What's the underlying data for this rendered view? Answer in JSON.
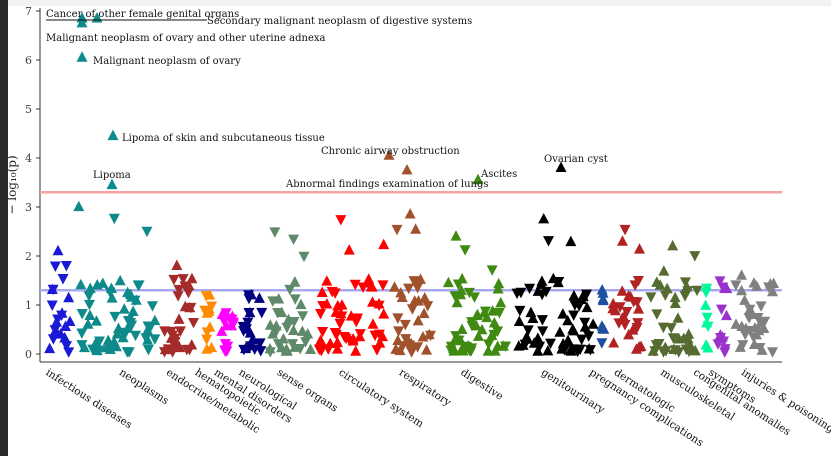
{
  "chart_data": {
    "type": "scatter",
    "title": "",
    "xlabel": "",
    "ylabel": "− log₁₀(p)",
    "ylim": [
      0,
      7
    ],
    "yticks": [
      0,
      1,
      2,
      3,
      4,
      5,
      6,
      7
    ],
    "grid": false,
    "legend": "none",
    "thresholds": [
      {
        "name": "bonferroni",
        "y": 3.3,
        "color": "#f5a3a3"
      },
      {
        "name": "nominal",
        "y": 1.3,
        "color": "#a8a8f0"
      }
    ],
    "categories": [
      {
        "label": "infectious diseases",
        "color": "#1a1ad6",
        "n": 22,
        "max": 2.1
      },
      {
        "label": "neoplasms",
        "color": "#0e8a8a",
        "n": 62,
        "max": 3.0
      },
      {
        "label": "endocrine/metabolic",
        "color": "#a52a2a",
        "n": 30,
        "max": 1.8
      },
      {
        "label": "hematopoietic",
        "color": "#ff8c00",
        "n": 12,
        "max": 1.2
      },
      {
        "label": "mental disorders",
        "color": "#ff00ff",
        "n": 16,
        "max": 0.8
      },
      {
        "label": "neurological",
        "color": "#000080",
        "n": 20,
        "max": 1.2
      },
      {
        "label": "sense organs",
        "color": "#5f8a6a",
        "n": 36,
        "max": 2.5
      },
      {
        "label": "circulatory system",
        "color": "#ff0000",
        "n": 54,
        "max": 2.75
      },
      {
        "label": "respiratory",
        "color": "#a0522d",
        "n": 34,
        "max": 2.85
      },
      {
        "label": "digestive",
        "color": "#3f8a10",
        "n": 56,
        "max": 2.4
      },
      {
        "label": "genitourinary",
        "color": "#000000",
        "n": 62,
        "max": 2.75
      },
      {
        "label": "pregnancy complications",
        "color": "#1f4fa0",
        "n": 8,
        "max": 1.3
      },
      {
        "label": "dermatologic",
        "color": "#b22222",
        "n": 28,
        "max": 2.55
      },
      {
        "label": "musculoskeletal",
        "color": "#556b2f",
        "n": 40,
        "max": 2.2
      },
      {
        "label": "congenital anomalies",
        "color": "#00fa9a",
        "n": 8,
        "max": 1.35
      },
      {
        "label": "symptoms",
        "color": "#9932cc",
        "n": 14,
        "max": 1.5
      },
      {
        "label": "injuries & poisonings",
        "color": "#808080",
        "n": 34,
        "max": 1.6
      }
    ],
    "highlighted": [
      {
        "label": "Cancer of other female genital organs",
        "category": "neoplasms",
        "y": 6.85,
        "direction": "up"
      },
      {
        "label": "Secondary malignant neoplasm of digestive systems",
        "category": "neoplasms",
        "y": 6.85,
        "direction": "up"
      },
      {
        "label": "Malignant neoplasm of ovary and other uterine adnexa",
        "category": "neoplasms",
        "y": 6.75,
        "direction": "up"
      },
      {
        "label": "Malignant neoplasm of ovary",
        "category": "neoplasms",
        "y": 6.05,
        "direction": "up"
      },
      {
        "label": "Lipoma of skin and subcutaneous tissue",
        "category": "neoplasms",
        "y": 4.45,
        "direction": "up"
      },
      {
        "label": "Lipoma",
        "category": "neoplasms",
        "y": 3.45,
        "direction": "up"
      },
      {
        "label": "Chronic airway obstruction",
        "category": "respiratory",
        "y": 4.05,
        "direction": "up"
      },
      {
        "label": "Abnormal findings examination of lungs",
        "category": "respiratory",
        "y": 3.75,
        "direction": "up"
      },
      {
        "label": "Ascites",
        "category": "digestive",
        "y": 3.55,
        "direction": "up"
      },
      {
        "label": "Ovarian cyst",
        "category": "genitourinary",
        "y": 3.8,
        "direction": "up"
      }
    ]
  }
}
